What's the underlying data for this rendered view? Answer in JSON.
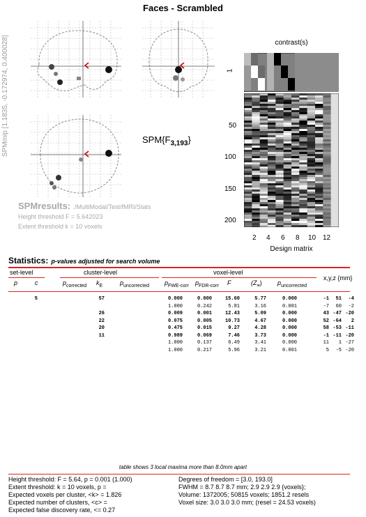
{
  "title": "Faces - Scrambled",
  "side_label": "SPMmip [1.1835, -0.172974, 0.400028]",
  "spm_stat": {
    "prefix": "SPM{F",
    "sub": "3,193",
    "suffix": "}"
  },
  "results": {
    "label": "SPMresults:",
    "path": "./MultiModal/Test/fMRI/Stats",
    "height_threshold": "Height threshold F = 5.642023",
    "extent_threshold": "Extent threshold k = 10 voxels"
  },
  "contrast_label": "contrast(s)",
  "contrast_tick": "1",
  "design_matrix": {
    "label": "Design matrix",
    "y_ticks": [
      "50",
      "100",
      "150",
      "200"
    ],
    "x_ticks": [
      "2",
      "4",
      "6",
      "8",
      "10",
      "12"
    ]
  },
  "statistics": {
    "title": "Statistics:",
    "subtitle": "p-values adjusted for search volume",
    "set_level": "set-level",
    "cluster_level": "cluster-level",
    "voxel_level": "voxel-level",
    "xyz": "x,y,z {mm}",
    "col_p": "p",
    "col_c": "c",
    "col_p_corrected": "p",
    "sub_corrected": "corrected",
    "col_k": "k",
    "sub_k": "E",
    "col_p_uncorrected": "p",
    "sub_uncorrected": "uncorrected",
    "col_pfwe": "p",
    "sub_fwe": "FWE-corr",
    "col_pfdr": "p",
    "sub_fdr": "FDR-corr",
    "col_F": "F",
    "col_Z": "(Z",
    "sub_z": "≡",
    "col_Z_close": ")",
    "col_pu": "p",
    "sub_pu": "uncorrected"
  },
  "table": {
    "rows": [
      {
        "bold": true,
        "c": "5",
        "kE": "57",
        "pfwe": "0.000",
        "pfdr": "0.000",
        "F": "15.60",
        "Z": "5.77",
        "pu": "0.000",
        "x": "-1",
        "y": "51",
        "z": "-4"
      },
      {
        "bold": false,
        "c": "",
        "kE": "",
        "pfwe": "1.000",
        "pfdr": "0.242",
        "F": "5.81",
        "Z": "3.16",
        "pu": "0.001",
        "x": "-7",
        "y": "60",
        "z": "-2"
      },
      {
        "bold": true,
        "c": "",
        "kE": "26",
        "pfwe": "0.009",
        "pfdr": "0.001",
        "F": "12.43",
        "Z": "5.09",
        "pu": "0.000",
        "x": "43",
        "y": "-47",
        "z": "-20"
      },
      {
        "bold": true,
        "c": "",
        "kE": "22",
        "pfwe": "0.075",
        "pfdr": "0.005",
        "F": "10.73",
        "Z": "4.67",
        "pu": "0.000",
        "x": "52",
        "y": "-64",
        "z": "2"
      },
      {
        "bold": true,
        "c": "",
        "kE": "20",
        "pfwe": "0.475",
        "pfdr": "0.015",
        "F": "9.27",
        "Z": "4.28",
        "pu": "0.000",
        "x": "58",
        "y": "-53",
        "z": "-11"
      },
      {
        "bold": true,
        "c": "",
        "kE": "11",
        "pfwe": "0.989",
        "pfdr": "0.069",
        "F": "7.46",
        "Z": "3.73",
        "pu": "0.000",
        "x": "-1",
        "y": "-11",
        "z": "-20"
      },
      {
        "bold": false,
        "c": "",
        "kE": "",
        "pfwe": "1.000",
        "pfdr": "0.137",
        "F": "6.49",
        "Z": "3.41",
        "pu": "0.000",
        "x": "11",
        "y": "1",
        "z": "-27"
      },
      {
        "bold": false,
        "c": "",
        "kE": "",
        "pfwe": "1.000",
        "pfdr": "0.217",
        "F": "5.96",
        "Z": "3.21",
        "pu": "0.001",
        "x": "5",
        "y": "-5",
        "z": "-20"
      }
    ]
  },
  "table_note": "table shows 3 local maxima more than 8.0mm apart",
  "footer": {
    "left": [
      "Height threshold: F = 5.64, p = 0.001 (1.000)",
      "Extent threshold: k = 10 voxels, p =",
      "Expected voxels per cluster, <k> = 1.826",
      "Expected number of clusters, <c> =",
      "Expected false discovery rate, <= 0.27"
    ],
    "right": [
      "Degrees of freedom = [3.0, 193.0]",
      "FWHM = 8.7 8.7 8.7 mm; 2.9 2.9 2.9 {voxels};",
      "Volume: 1372005; 50815 voxels; 1851.2 resels",
      "Voxel size: 3.0 3.0 3.0 mm; (resel = 24.53 voxels)"
    ]
  },
  "colors": {
    "accent_red": "#d22222",
    "cursor": "#cc0000",
    "grey_text": "#a8a8a8"
  }
}
